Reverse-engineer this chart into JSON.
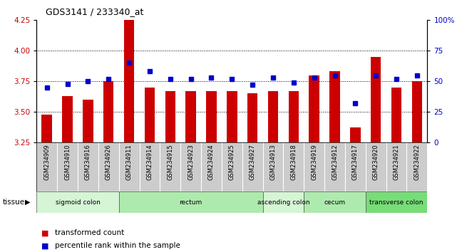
{
  "title": "GDS3141 / 233340_at",
  "samples": [
    "GSM234909",
    "GSM234910",
    "GSM234916",
    "GSM234926",
    "GSM234911",
    "GSM234914",
    "GSM234915",
    "GSM234923",
    "GSM234924",
    "GSM234925",
    "GSM234927",
    "GSM234913",
    "GSM234918",
    "GSM234919",
    "GSM234912",
    "GSM234917",
    "GSM234920",
    "GSM234921",
    "GSM234922"
  ],
  "bar_values": [
    3.48,
    3.63,
    3.6,
    3.75,
    4.25,
    3.7,
    3.67,
    3.67,
    3.67,
    3.67,
    3.65,
    3.67,
    3.67,
    3.8,
    3.83,
    3.37,
    3.95,
    3.7,
    3.75
  ],
  "dot_values": [
    45,
    48,
    50,
    52,
    65,
    58,
    52,
    52,
    53,
    52,
    47,
    53,
    49,
    53,
    55,
    32,
    55,
    52,
    55
  ],
  "ylim_left": [
    3.25,
    4.25
  ],
  "ylim_right": [
    0,
    100
  ],
  "yticks_left": [
    3.25,
    3.5,
    3.75,
    4.0,
    4.25
  ],
  "yticks_right": [
    0,
    25,
    50,
    75,
    100
  ],
  "ytick_labels_right": [
    "0",
    "25",
    "50",
    "75",
    "100%"
  ],
  "grid_values": [
    3.5,
    3.75,
    4.0
  ],
  "tissue_groups": [
    {
      "label": "sigmoid colon",
      "start": 0,
      "end": 4
    },
    {
      "label": "rectum",
      "start": 4,
      "end": 11
    },
    {
      "label": "ascending colon",
      "start": 11,
      "end": 13
    },
    {
      "label": "cecum",
      "start": 13,
      "end": 16
    },
    {
      "label": "transverse colon",
      "start": 16,
      "end": 19
    }
  ],
  "tissue_colors": [
    "#d5f5d5",
    "#aeeaae",
    "#d5f5d5",
    "#aeeaae",
    "#77dd77"
  ],
  "bar_color": "#cc0000",
  "dot_color": "#0000cc",
  "bg_color": "#ffffff",
  "xlim": [
    -0.5,
    18.5
  ],
  "left_axis_color": "#cc0000",
  "right_axis_color": "#0000cc",
  "label_bg_color": "#cccccc"
}
